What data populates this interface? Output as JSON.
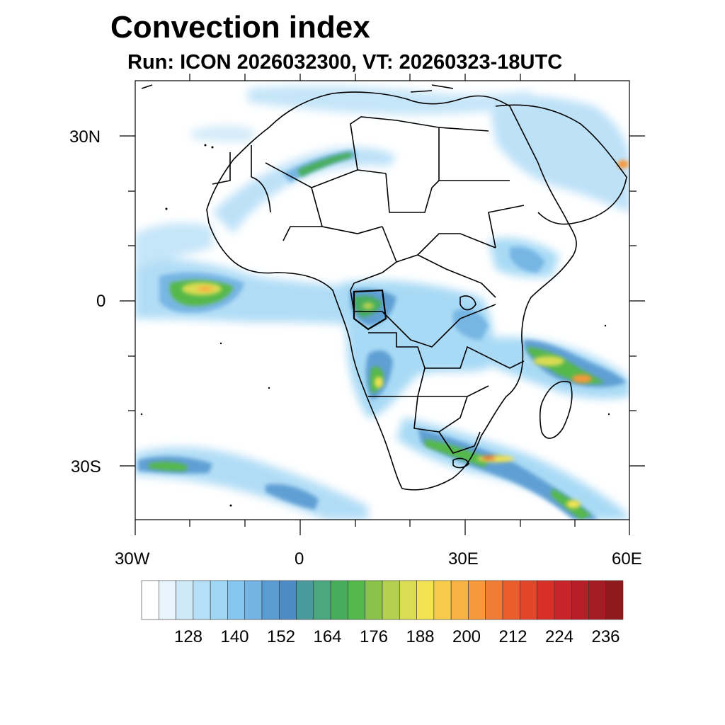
{
  "title": "Convection index",
  "subtitle": "Run: ICON 2026032300,  VT: 20260323-18UTC",
  "axes": {
    "lon_labels": [
      "30W",
      "0",
      "30E",
      "60E"
    ],
    "lat_labels": [
      "30N",
      "0",
      "30S"
    ]
  },
  "colorbar": {
    "colors": [
      "#ffffff",
      "#e9f5fd",
      "#cfe9f8",
      "#b6def7",
      "#9fd6f4",
      "#86c6ee",
      "#74b4e3",
      "#5b9cd3",
      "#4d8bc4",
      "#4a9a9c",
      "#4aa77e",
      "#47ad5c",
      "#55b84a",
      "#8bc34a",
      "#b3d04f",
      "#dadc52",
      "#f2e352",
      "#f7cc4a",
      "#f8b244",
      "#f6983c",
      "#f17c35",
      "#ea5e2d",
      "#e2462a",
      "#d63028",
      "#c9242a",
      "#b81e28",
      "#a51b23",
      "#8e1a1e"
    ],
    "labels": [
      "128",
      "140",
      "152",
      "164",
      "176",
      "188",
      "200",
      "212",
      "224",
      "236"
    ]
  }
}
